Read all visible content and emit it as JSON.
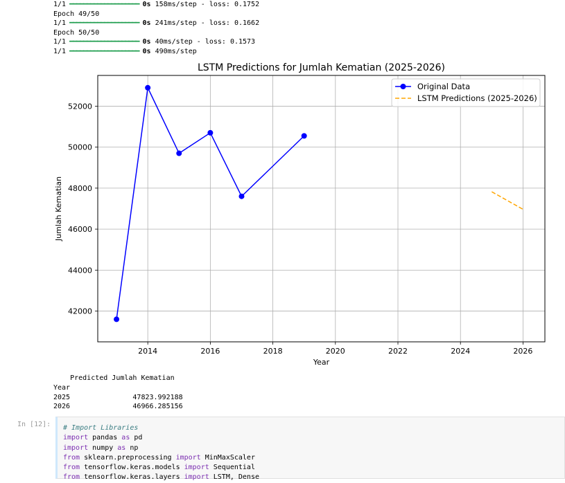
{
  "log": [
    {
      "step": "1/1",
      "time": "0s",
      "rest": " 158ms/step - loss: 0.1752"
    },
    {
      "epoch": "Epoch 49/50"
    },
    {
      "step": "1/1",
      "time": "0s",
      "rest": " 241ms/step - loss: 0.1662"
    },
    {
      "epoch": "Epoch 50/50"
    },
    {
      "step": "1/1",
      "time": "0s",
      "rest": " 40ms/step - loss: 0.1573"
    },
    {
      "step": "1/1",
      "time": "0s",
      "rest": " 490ms/step"
    }
  ],
  "chart_data": {
    "type": "line",
    "title": "LSTM Predictions for Jumlah Kematian (2025-2026)",
    "xlabel": "Year",
    "ylabel": "Jumlah Kematian",
    "xlim": [
      2012.4,
      2026.7
    ],
    "ylim": [
      40500,
      53500
    ],
    "xticks": [
      2014,
      2016,
      2018,
      2020,
      2022,
      2024,
      2026
    ],
    "yticks": [
      42000,
      44000,
      46000,
      48000,
      50000,
      52000
    ],
    "grid": true,
    "legend_position": "top-right",
    "series": [
      {
        "name": "Original Data",
        "color": "#0000ff",
        "style": "solid-marker",
        "x": [
          2013,
          2014,
          2015,
          2016,
          2017,
          2019
        ],
        "y": [
          41600,
          52900,
          49700,
          50700,
          47600,
          50550
        ]
      },
      {
        "name": "LSTM Predictions (2025-2026)",
        "color": "#ffa500",
        "style": "dashed",
        "x": [
          2025,
          2026
        ],
        "y": [
          47823.992188,
          46966.285156
        ]
      }
    ]
  },
  "predictions_table": {
    "header": "Predicted Jumlah Kematian",
    "index_name": "Year",
    "rows": [
      {
        "year": "2025",
        "value": "47823.992188"
      },
      {
        "year": "2026",
        "value": "46966.285156"
      }
    ]
  },
  "next_cell": {
    "prompt": "In [12]:",
    "lines": [
      [
        {
          "t": "# Import Libraries",
          "c": "cm"
        }
      ],
      [
        {
          "t": "import",
          "c": "kw"
        },
        {
          "t": " pandas ",
          "c": ""
        },
        {
          "t": "as",
          "c": "kw"
        },
        {
          "t": " pd",
          "c": ""
        }
      ],
      [
        {
          "t": "import",
          "c": "kw"
        },
        {
          "t": " numpy ",
          "c": ""
        },
        {
          "t": "as",
          "c": "kw"
        },
        {
          "t": " np",
          "c": ""
        }
      ],
      [
        {
          "t": "from",
          "c": "kw"
        },
        {
          "t": " sklearn.preprocessing ",
          "c": ""
        },
        {
          "t": "import",
          "c": "kw"
        },
        {
          "t": " MinMaxScaler",
          "c": ""
        }
      ],
      [
        {
          "t": "from",
          "c": "kw"
        },
        {
          "t": " tensorflow.keras.models ",
          "c": ""
        },
        {
          "t": "import",
          "c": "kw"
        },
        {
          "t": " Sequential",
          "c": ""
        }
      ],
      [
        {
          "t": "from",
          "c": "kw"
        },
        {
          "t": " tensorflow.keras.layers ",
          "c": ""
        },
        {
          "t": "import",
          "c": "kw"
        },
        {
          "t": " LSTM, Dense",
          "c": ""
        }
      ]
    ]
  }
}
